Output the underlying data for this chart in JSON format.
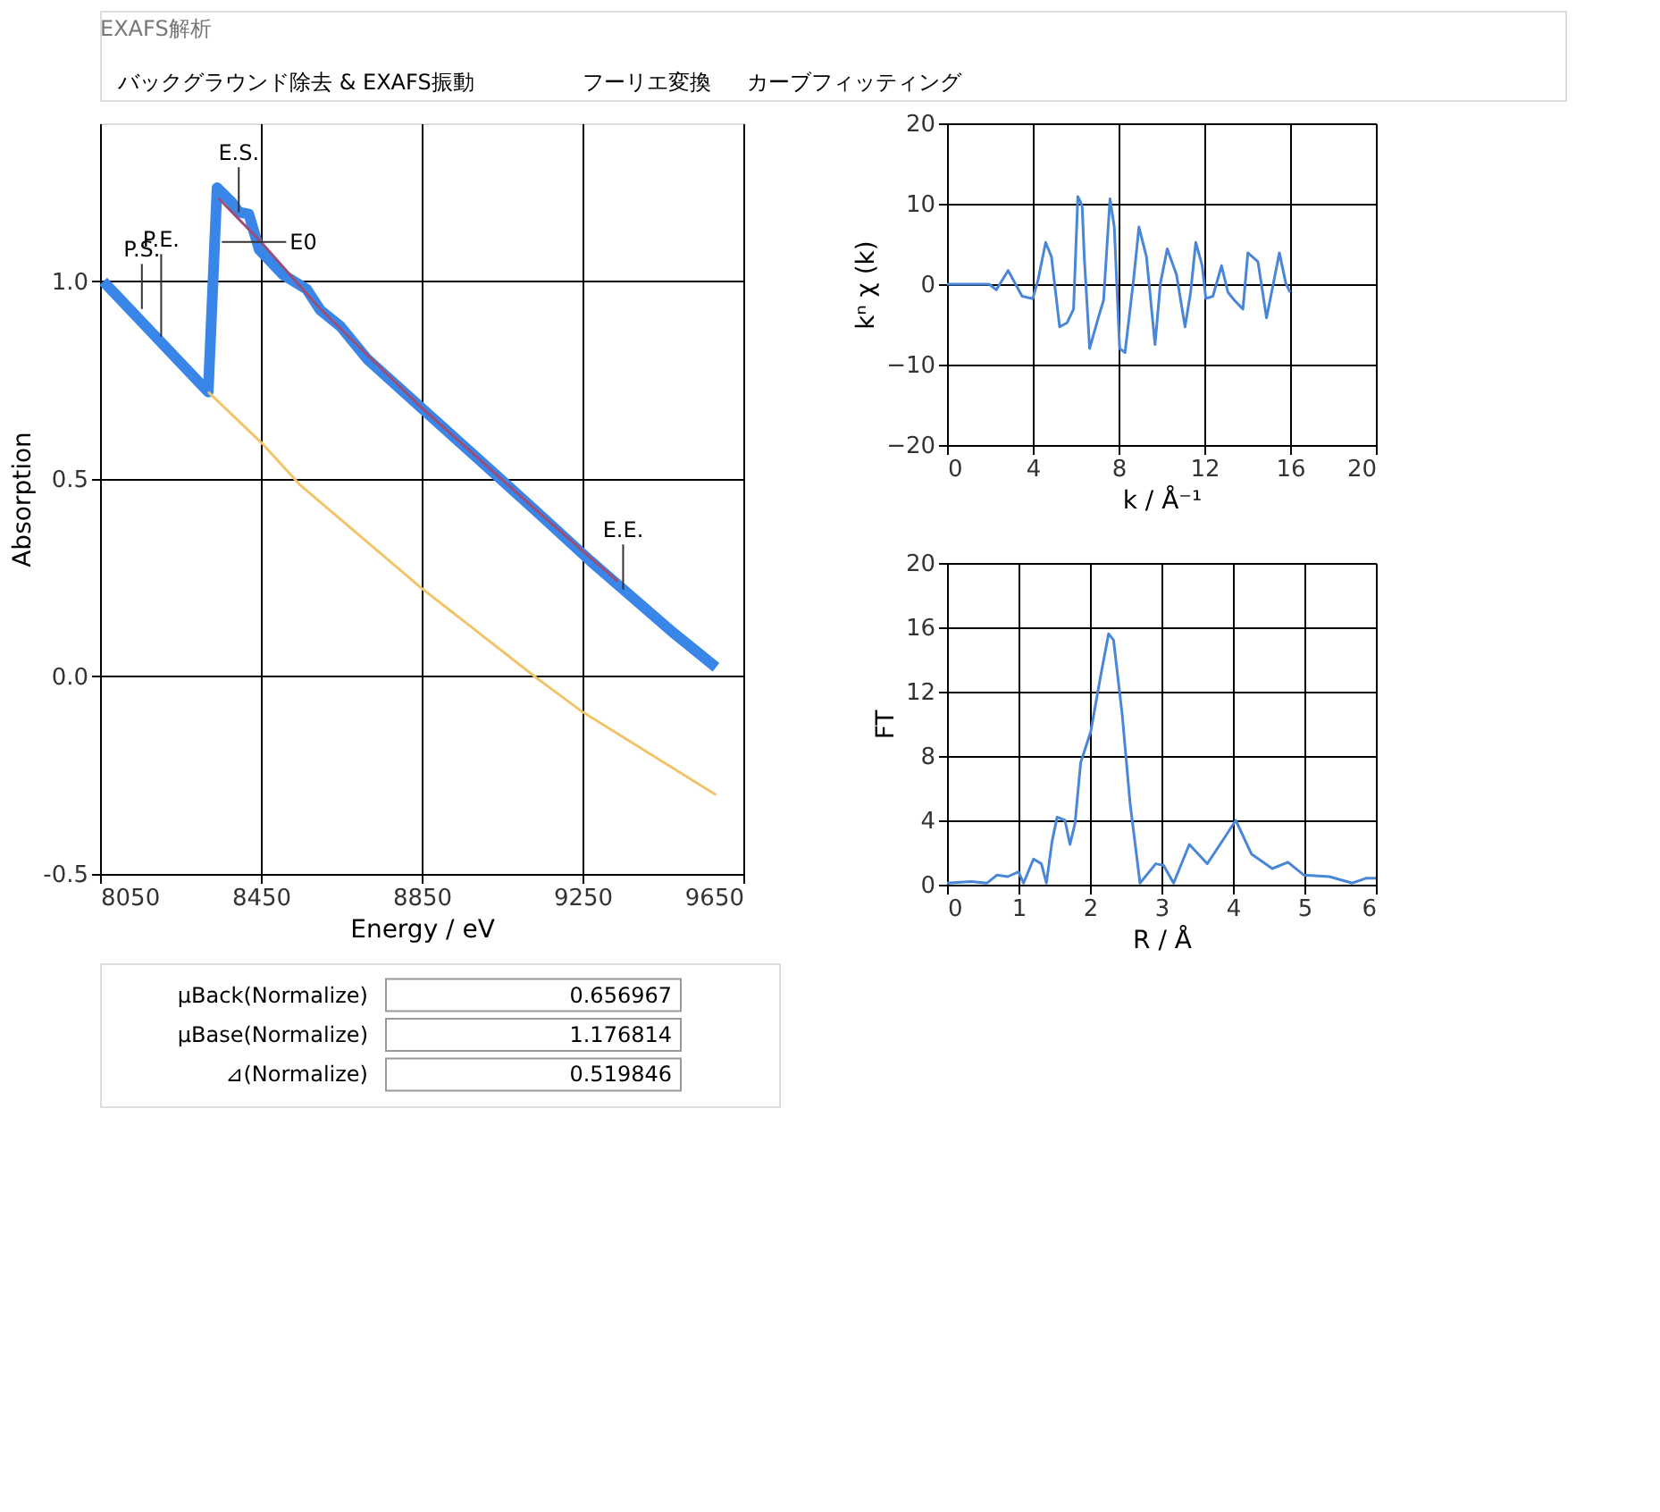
{
  "chart_data": [
    {
      "type": "other",
      "title": "EXAFS解析",
      "annotations": [
        "バックグラウンド除去 & EXAFS振動",
        "フーリエ変換",
        "カーブフィッティング"
      ]
    },
    {
      "type": "line",
      "xlabel": "Energy / eV",
      "ylabel": "Absorption",
      "xlim": [
        8050,
        9650
      ],
      "xticks": [
        8050,
        8450,
        8850,
        9250,
        9650
      ],
      "ylim": [
        -0.5,
        1.4
      ],
      "yticks": [
        {
          "value": -0.5,
          "label": "-0.5"
        },
        {
          "value": 0,
          "label": "0.0"
        },
        {
          "value": 0.5,
          "label": "0.5"
        },
        {
          "value": 1.0,
          "label": "1.0"
        }
      ],
      "grid": true,
      "series": [
        {
          "color": "#3a86e8",
          "x": [
            8058,
            8319,
            8341,
            8378,
            8395,
            8420,
            8446,
            8505,
            8564,
            8598,
            8648,
            8715,
            8850,
            9001,
            9136,
            9270,
            9355,
            9473,
            9582
          ],
          "values": [
            1.0,
            0.72,
            1.237,
            1.2,
            1.175,
            1.17,
            1.08,
            1.017,
            0.98,
            0.927,
            0.886,
            0.803,
            0.679,
            0.541,
            0.417,
            0.292,
            0.217,
            0.113,
            0.023
          ]
        },
        {
          "color": "#f2c46a",
          "x": [
            8319,
            8454,
            8546,
            8850,
            9136,
            9246,
            9582
          ],
          "values": [
            0.72,
            0.589,
            0.486,
            0.223,
            -0.004,
            -0.087,
            -0.3
          ]
        },
        {
          "color": "#9a4f78",
          "x": [
            8345,
            8450,
            8598,
            8850,
            9136,
            9338
          ],
          "values": [
            1.21,
            1.1,
            0.93,
            0.68,
            0.42,
            0.24
          ]
        }
      ],
      "annotations": [
        {
          "text": "P.S.",
          "x": 8154,
          "y": 0.93
        },
        {
          "text": "P.E.",
          "x": 8202,
          "y": 0.86
        },
        {
          "text": "E.S.",
          "x": 8395,
          "y": 1.175
        },
        {
          "text": "E0",
          "x": 8353,
          "y": 1.1
        },
        {
          "text": "E.E.",
          "x": 9351,
          "y": 0.22
        }
      ]
    },
    {
      "type": "line",
      "xlabel": "k / Å⁻¹",
      "ylabel": "kⁿ χ (k)",
      "xlim": [
        0,
        20
      ],
      "xticks": [
        0,
        4,
        8,
        12,
        16,
        20
      ],
      "ylim": [
        -20,
        20
      ],
      "yticks": [
        -20,
        -10,
        0,
        10,
        20
      ],
      "grid": true,
      "series": [
        {
          "color": "#4a86d8",
          "x": [
            0,
            1.96,
            2.3,
            2.85,
            3.5,
            4.0,
            4.25,
            4.6,
            4.87,
            5.25,
            5.6,
            5.9,
            6.1,
            6.3,
            6.4,
            6.65,
            7.05,
            7.3,
            7.6,
            7.8,
            8.05,
            8.3,
            8.7,
            8.95,
            9.3,
            9.7,
            9.95,
            10.27,
            10.7,
            11.1,
            11.36,
            11.6,
            11.9,
            12.07,
            12.4,
            12.8,
            13.1,
            13.4,
            13.8,
            14.03,
            14.5,
            14.9,
            15.3,
            15.5,
            15.8,
            16.0
          ],
          "values": [
            0,
            0,
            -0.7,
            1.7,
            -1.5,
            -1.8,
            0.6,
            5.2,
            3.4,
            -5.3,
            -4.8,
            -3.1,
            10.9,
            9.8,
            3.4,
            -8,
            -4.2,
            -2,
            10.6,
            7.1,
            -8,
            -8.5,
            0.6,
            7.1,
            3.4,
            -7.5,
            0.1,
            4.4,
            1.2,
            -5.3,
            -1,
            5.2,
            2.3,
            -1.8,
            -1.5,
            2.3,
            -1,
            -2,
            -3.1,
            3.9,
            2.8,
            -4.2,
            1.2,
            3.9,
            0.1,
            -1.0
          ]
        }
      ]
    },
    {
      "type": "line",
      "xlabel": "R / Å",
      "ylabel": "FT",
      "xlim": [
        0,
        6
      ],
      "xticks": [
        0,
        1,
        2,
        3,
        4,
        5,
        6
      ],
      "ylim": [
        0,
        20
      ],
      "yticks": [
        0,
        4,
        8,
        12,
        16,
        20
      ],
      "grid": true,
      "series": [
        {
          "color": "#4a86d8",
          "x": [
            0,
            0.34,
            0.56,
            0.7,
            0.85,
            1.0,
            1.07,
            1.21,
            1.32,
            1.39,
            1.47,
            1.54,
            1.65,
            1.72,
            1.79,
            1.87,
            2.01,
            2.15,
            2.26,
            2.33,
            2.45,
            2.56,
            2.7,
            2.92,
            3.03,
            3.17,
            3.39,
            3.64,
            3.82,
            4.04,
            4.26,
            4.55,
            4.77,
            4.99,
            5.35,
            5.67,
            5.86,
            6.0
          ],
          "values": [
            0.1,
            0.2,
            0.1,
            0.6,
            0.5,
            0.8,
            0.1,
            1.6,
            1.3,
            0.1,
            2.7,
            4.2,
            4.0,
            2.5,
            3.8,
            7.6,
            9.5,
            13,
            15.6,
            15.2,
            10.6,
            5.1,
            0.1,
            1.3,
            1.2,
            0.1,
            2.5,
            1.3,
            2.5,
            4.0,
            1.9,
            1.0,
            1.4,
            0.6,
            0.5,
            0.1,
            0.4,
            0.4
          ]
        }
      ]
    },
    {
      "type": "other",
      "annotations": [
        "μBack(Normalize)",
        "0.656967",
        "μBase(Normalize)",
        "1.176814",
        "⊿(Normalize)",
        "0.519846"
      ]
    }
  ]
}
